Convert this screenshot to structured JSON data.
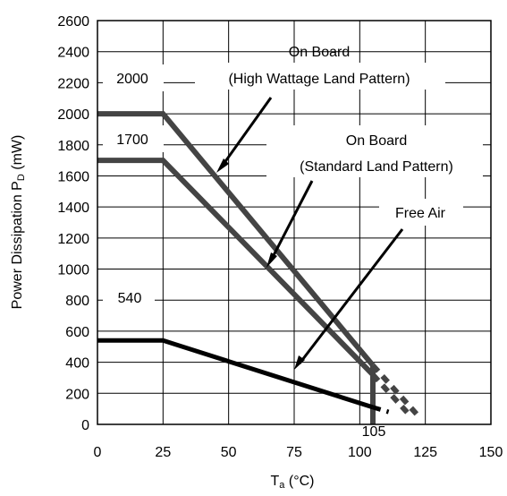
{
  "chart_data": {
    "type": "line",
    "title": "",
    "xlabel_main": "T",
    "xlabel_sub": "a",
    "xlabel_tail": " (°C)",
    "ylabel_main": "Power Dissipation P",
    "ylabel_sub": "D",
    "ylabel_tail": " (mW)",
    "xlim": [
      0,
      150
    ],
    "ylim": [
      0,
      2600
    ],
    "xticks": [
      0,
      25,
      50,
      75,
      100,
      125,
      150
    ],
    "yticks": [
      0,
      200,
      400,
      600,
      800,
      1000,
      1200,
      1400,
      1600,
      1800,
      2000,
      2200,
      2400,
      2600
    ],
    "grid": true,
    "series": [
      {
        "name": "On Board (High Wattage Land Pattern)",
        "color": "#444444",
        "points": [
          [
            0,
            2000
          ],
          [
            25,
            2000
          ],
          [
            105,
            380
          ]
        ],
        "derated_dashed": [
          [
            105,
            380
          ],
          [
            122,
            60
          ]
        ],
        "vertical_drop": [
          [
            105,
            380
          ],
          [
            105,
            0
          ]
        ]
      },
      {
        "name": "On Board (Standard Land Pattern)",
        "color": "#444444",
        "points": [
          [
            0,
            1700
          ],
          [
            25,
            1700
          ],
          [
            105,
            320
          ]
        ],
        "derated_dashed": [
          [
            105,
            320
          ],
          [
            119,
            60
          ]
        ],
        "vertical_drop": [
          [
            105,
            320
          ],
          [
            105,
            0
          ]
        ]
      },
      {
        "name": "Free Air",
        "color": "#000000",
        "points": [
          [
            0,
            540
          ],
          [
            25,
            540
          ],
          [
            105,
            110
          ]
        ],
        "derated_dashed": [
          [
            105,
            110
          ],
          [
            111,
            80
          ]
        ],
        "vertical_drop": []
      }
    ],
    "annotations": {
      "high_wattage_line1": "On Board",
      "high_wattage_line2": "(High Wattage Land Pattern)",
      "standard_line1": "On Board",
      "standard_line2": "(Standard Land Pattern)",
      "free_air": "Free Air",
      "value_2000": "2000",
      "value_1700": "1700",
      "value_540": "540",
      "value_105": "105"
    }
  }
}
